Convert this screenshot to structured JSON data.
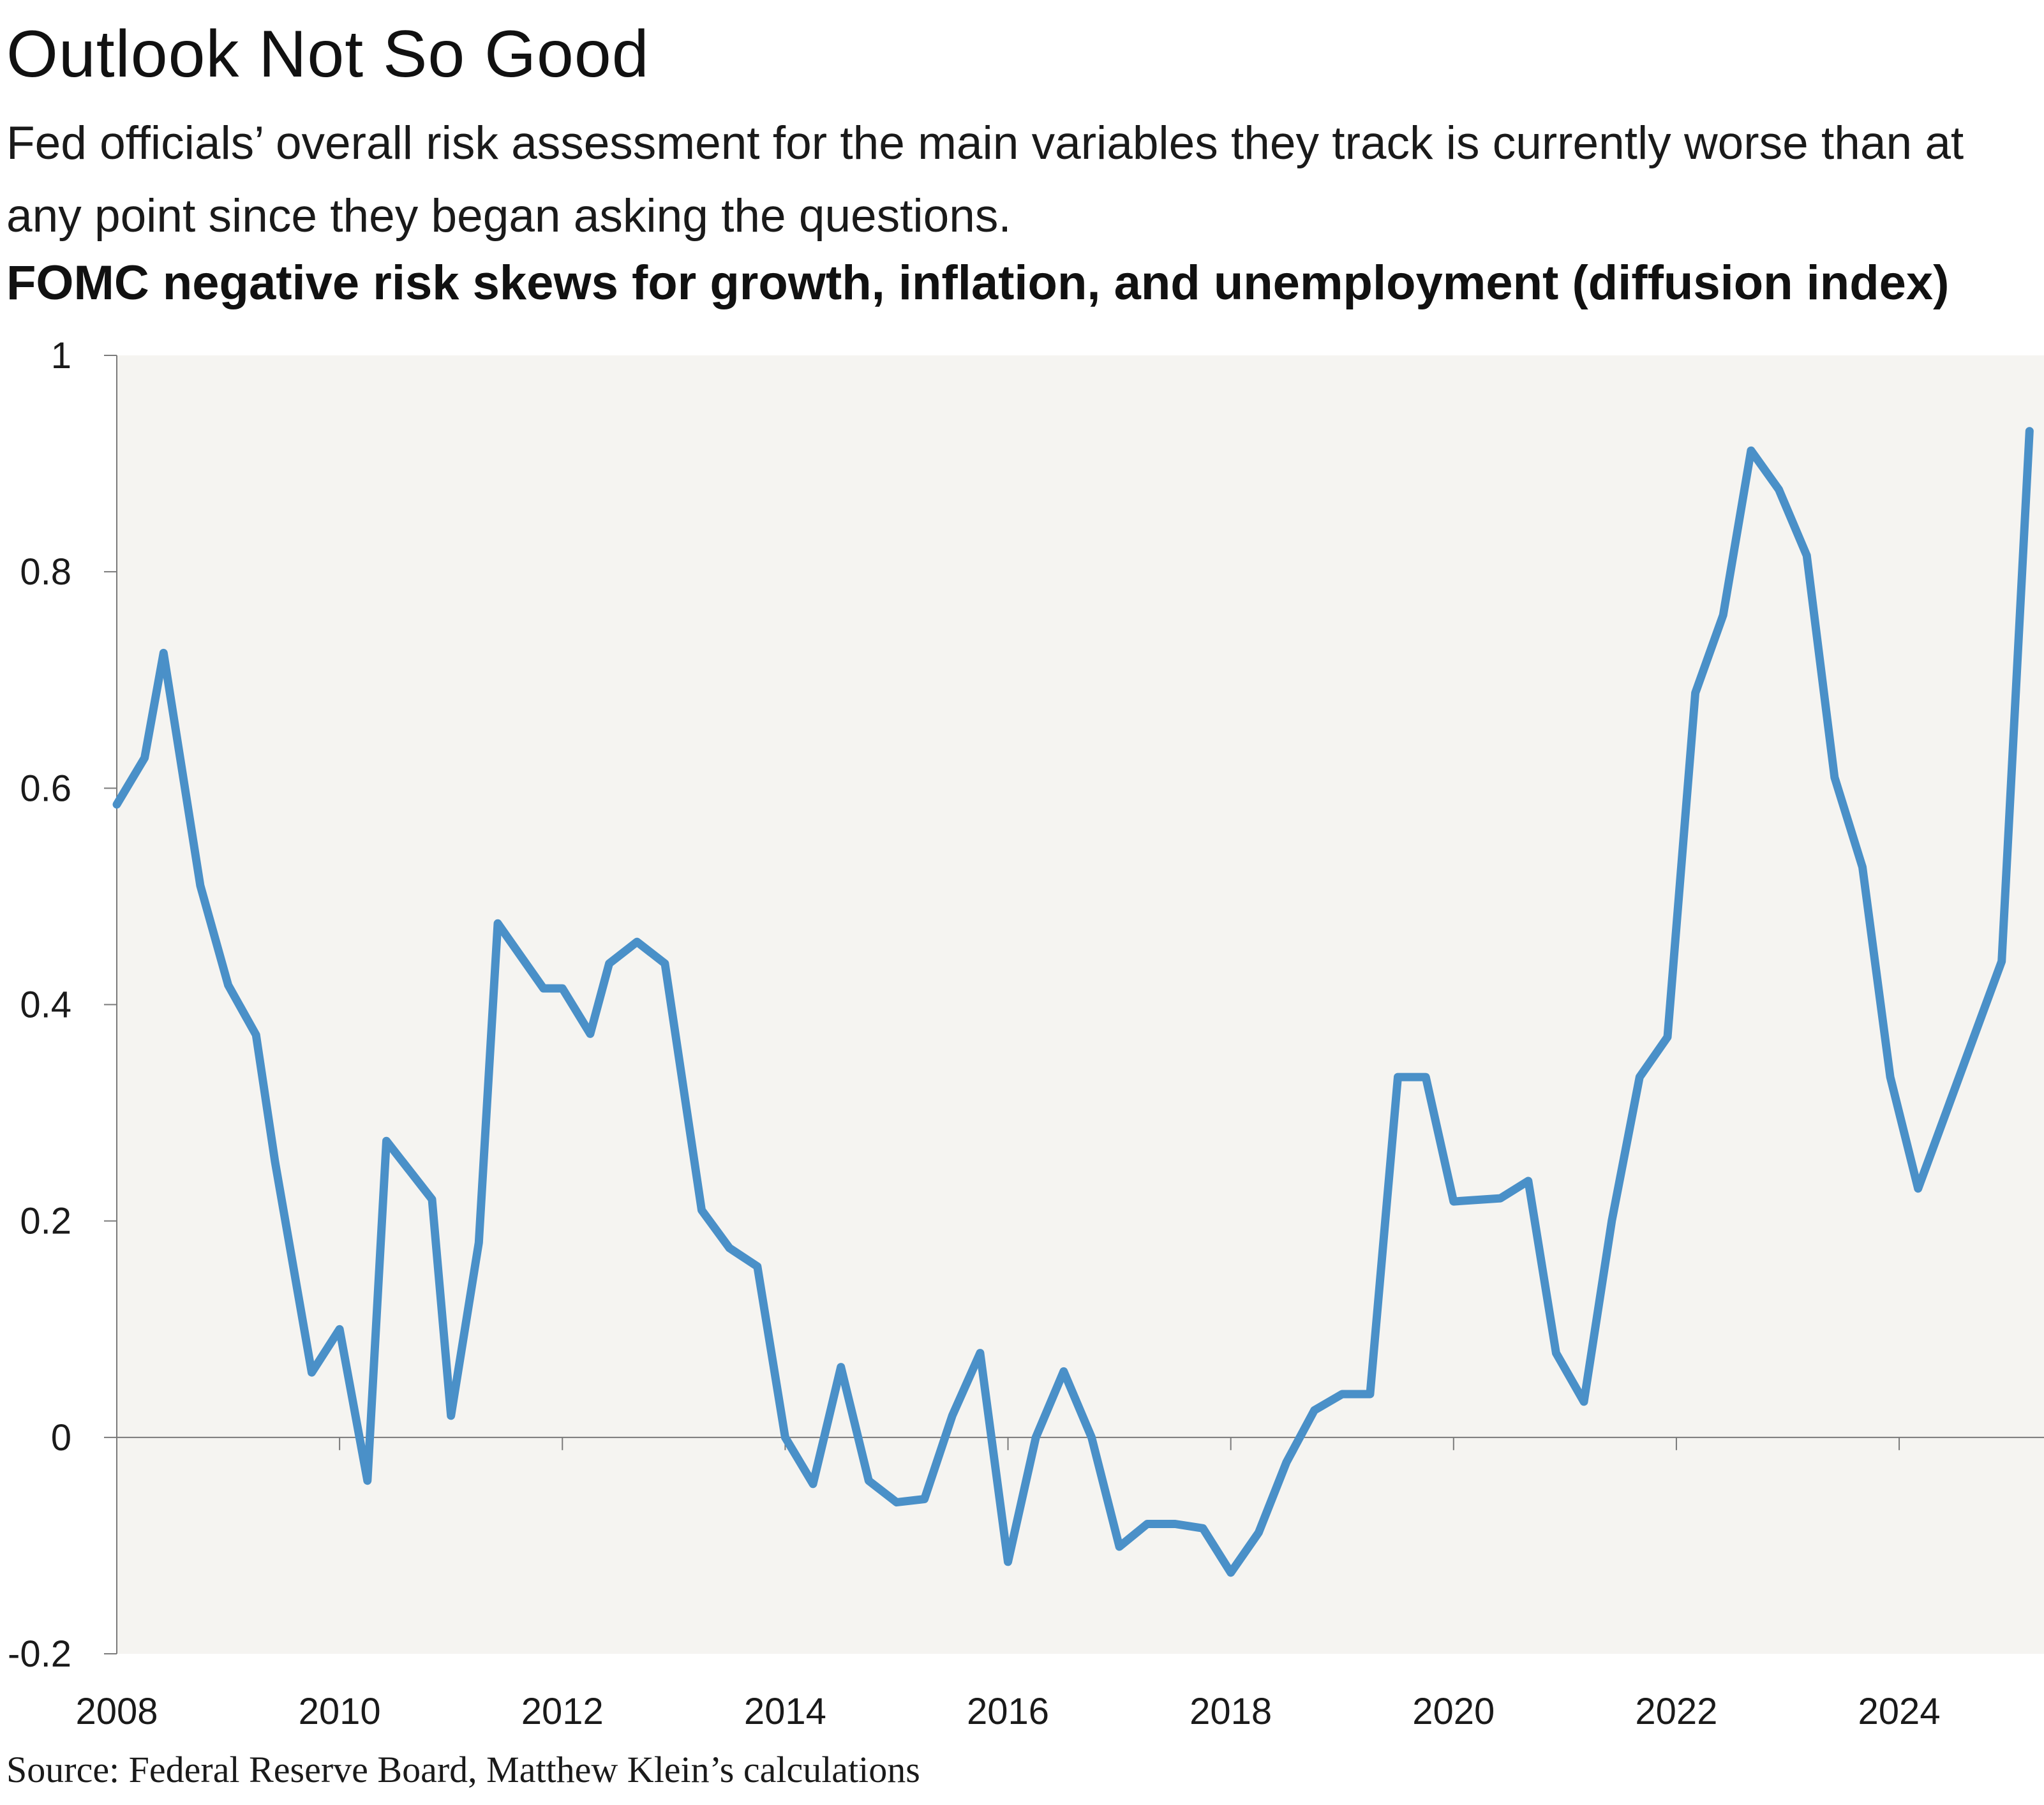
{
  "title": "Outlook Not So Good",
  "subtitle": "Fed officials’ overall risk assessment for the main variables they track is currently worse than at any point since they began asking the questions.",
  "chart_title": "FOMC negative risk skews for growth, inflation, and unemployment (diffusion index)",
  "source": "Source: Federal Reserve Board, Matthew Klein’s calculations",
  "colors": {
    "line": "#4a90c8",
    "plot_background": "#f5f4f1",
    "axis": "#7a7a7a"
  },
  "chart_data": {
    "type": "line",
    "title": "FOMC negative risk skews for growth, inflation, and unemployment (diffusion index)",
    "xlabel": "",
    "ylabel": "",
    "xlim": [
      2008.0,
      2025.3
    ],
    "ylim": [
      -0.2,
      1.0
    ],
    "y_ticks": [
      -0.2,
      0,
      0.2,
      0.4,
      0.6,
      0.8,
      1
    ],
    "y_tick_labels": [
      "-0.2",
      "0",
      "0.2",
      "0.4",
      "0.6",
      "0.8",
      "1"
    ],
    "x_ticks": [
      2008,
      2010,
      2012,
      2014,
      2016,
      2018,
      2020,
      2022,
      2024
    ],
    "x_tick_labels": [
      "2008",
      "2010",
      "2012",
      "2014",
      "2016",
      "2018",
      "2020",
      "2022",
      "2024"
    ],
    "grid": false,
    "legend": "none",
    "series": [
      {
        "x": [
          2008.0,
          2008.25,
          2008.42,
          2008.75,
          2009.0,
          2009.25,
          2009.42,
          2009.75,
          2010.0,
          2010.25,
          2010.42,
          2010.83,
          2011.0,
          2011.25,
          2011.42,
          2011.83,
          2012.0,
          2012.25,
          2012.42,
          2012.67,
          2012.92,
          2013.25,
          2013.5,
          2013.75,
          2014.0,
          2014.25,
          2014.5,
          2014.75,
          2015.0,
          2015.25,
          2015.5,
          2015.75,
          2016.0,
          2016.25,
          2016.5,
          2016.75,
          2017.0,
          2017.25,
          2017.5,
          2017.75,
          2018.0,
          2018.25,
          2018.5,
          2018.75,
          2019.0,
          2019.25,
          2019.5,
          2019.75,
          2020.0,
          2020.42,
          2020.67,
          2020.92,
          2021.17,
          2021.42,
          2021.67,
          2021.92,
          2022.17,
          2022.42,
          2022.67,
          2022.92,
          2023.17,
          2023.42,
          2023.67,
          2023.92,
          2024.17,
          2024.42,
          2024.67,
          2024.92,
          2025.17
        ],
        "y": [
          0.585,
          0.628,
          0.725,
          0.51,
          0.418,
          0.372,
          0.255,
          0.06,
          0.1,
          -0.04,
          0.274,
          0.22,
          0.02,
          0.18,
          0.475,
          0.415,
          0.415,
          0.373,
          0.438,
          0.458,
          0.438,
          0.21,
          0.175,
          0.158,
          0.0,
          -0.043,
          0.065,
          -0.04,
          -0.06,
          -0.057,
          0.02,
          0.078,
          -0.115,
          0.0,
          0.061,
          0.0,
          -0.101,
          -0.08,
          -0.08,
          -0.084,
          -0.125,
          -0.088,
          -0.023,
          0.025,
          0.04,
          0.04,
          0.333,
          0.333,
          0.218,
          0.221,
          0.237,
          0.078,
          0.033,
          0.2,
          0.333,
          0.37,
          0.688,
          0.76,
          0.912,
          0.876,
          0.815,
          0.61,
          0.527,
          0.333,
          0.23,
          0.3,
          0.37,
          0.44,
          0.93
        ]
      }
    ]
  }
}
